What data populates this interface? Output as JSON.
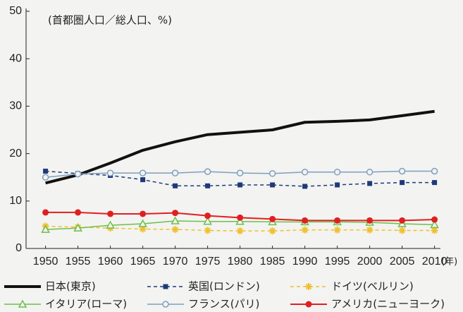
{
  "chart_data": {
    "type": "line",
    "annotations": [
      "(首都圏人口／総人口、%)",
      "(年)"
    ],
    "x": [
      1950,
      1955,
      1960,
      1965,
      1970,
      1975,
      1980,
      1985,
      1990,
      1995,
      2000,
      2005,
      2010
    ],
    "xlim": [
      1947,
      2012
    ],
    "xticks": [
      1950,
      1955,
      1960,
      1965,
      1970,
      1975,
      1980,
      1985,
      1990,
      1995,
      2000,
      2005,
      2010
    ],
    "ylim": [
      0,
      50
    ],
    "yticks": [
      0,
      10,
      20,
      30,
      40,
      50
    ],
    "series": [
      {
        "name": "日本(東京)",
        "color": "#111111",
        "width": 4,
        "dashed": false,
        "marker": "none",
        "values": [
          13.8,
          15.5,
          18.0,
          20.7,
          22.5,
          24.0,
          24.5,
          25.0,
          26.6,
          26.8,
          27.1,
          28.0,
          28.9
        ]
      },
      {
        "name": "英国(ロンドン)",
        "color": "#1f3a7a",
        "width": 1.5,
        "dashed": true,
        "marker": "square",
        "values": [
          16.3,
          15.8,
          15.4,
          14.5,
          13.2,
          13.2,
          13.4,
          13.4,
          13.1,
          13.4,
          13.7,
          13.9,
          13.9
        ]
      },
      {
        "name": "ドイツ(ベルリン)",
        "color": "#f0c030",
        "width": 1.5,
        "dashed": true,
        "marker": "plus",
        "values": [
          4.7,
          4.5,
          4.3,
          4.1,
          4.0,
          3.8,
          3.7,
          3.7,
          3.9,
          3.9,
          3.9,
          3.8,
          3.8
        ]
      },
      {
        "name": "イタリア(ローマ)",
        "color": "#6cc04a",
        "width": 1.5,
        "dashed": false,
        "marker": "triangle",
        "values": [
          4.0,
          4.3,
          4.9,
          5.2,
          5.8,
          5.7,
          5.7,
          5.6,
          5.6,
          5.6,
          5.5,
          5.2,
          5.0
        ]
      },
      {
        "name": "フランス(パリ)",
        "color": "#7d9fc0",
        "width": 1.5,
        "dashed": false,
        "marker": "circle-open",
        "values": [
          15.0,
          15.7,
          15.9,
          15.9,
          15.9,
          16.2,
          15.9,
          15.8,
          16.1,
          16.1,
          16.1,
          16.3,
          16.3
        ]
      },
      {
        "name": "アメリカ(ニューヨーク)",
        "color": "#e02020",
        "width": 2,
        "dashed": false,
        "marker": "circle-filled",
        "values": [
          7.6,
          7.6,
          7.3,
          7.3,
          7.5,
          6.9,
          6.5,
          6.2,
          5.9,
          5.9,
          5.9,
          5.9,
          6.1
        ]
      }
    ]
  }
}
